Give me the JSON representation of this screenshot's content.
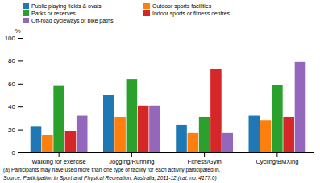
{
  "chart_data": {
    "type": "bar",
    "categories": [
      "Walking for exercise",
      "Jogging/Running",
      "Fitness/Gym",
      "Cycling/BMXing"
    ],
    "series": [
      {
        "name": "Public playing fields & ovals",
        "values": [
          23,
          50,
          24,
          32
        ]
      },
      {
        "name": "Outdoor sports facilities",
        "values": [
          15,
          31,
          17,
          28
        ]
      },
      {
        "name": "Parks or reserves",
        "values": [
          58,
          64,
          31,
          59
        ]
      },
      {
        "name": "Indoor sports or fitness centres",
        "values": [
          19,
          41,
          73,
          31
        ]
      },
      {
        "name": "Off-road cycleways or bike paths",
        "values": [
          32,
          41,
          17,
          79
        ]
      }
    ],
    "ylabel": "%",
    "ylim": [
      0,
      100
    ],
    "yticks": [
      0,
      20,
      40,
      60,
      80,
      100
    ],
    "grid": false,
    "legend": "top",
    "annotations": [
      "(a) Participants may have used more than one type of facility for each activity participated in.",
      "Source: Participation in Sport and Physical Recreation, Australia, 2011-12 (cat.  no.  4177.0)"
    ]
  }
}
